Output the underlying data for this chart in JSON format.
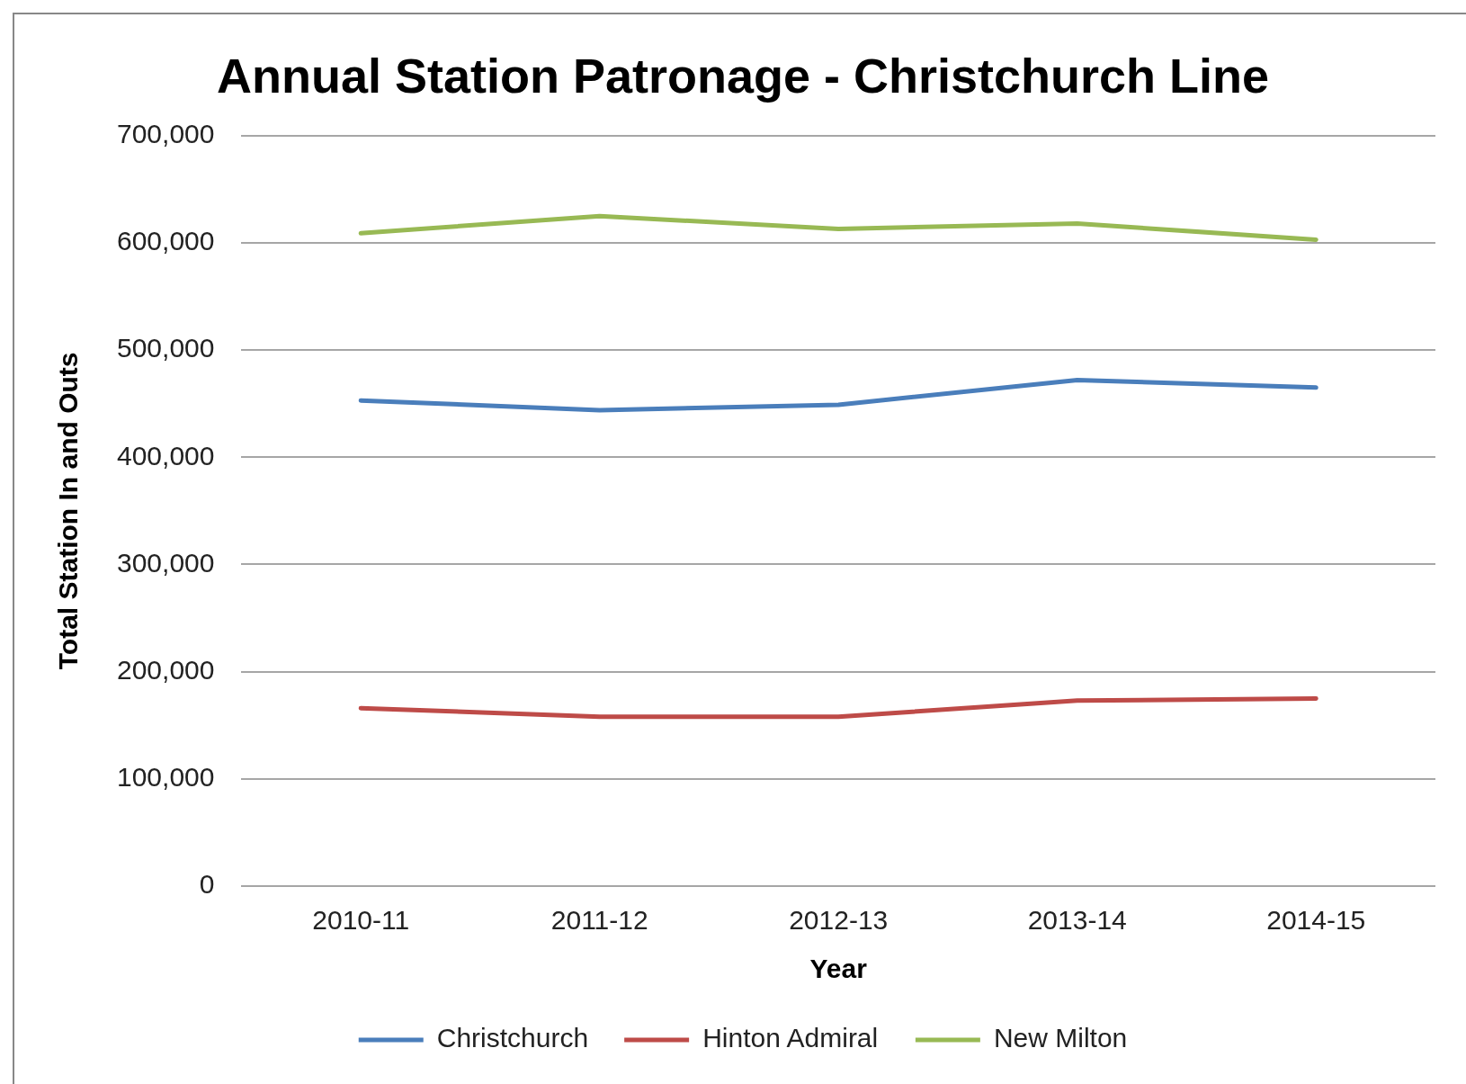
{
  "chart_data": {
    "type": "line",
    "title": "Annual Station Patronage - Christchurch Line",
    "xlabel": "Year",
    "ylabel": "Total Station In and Outs",
    "categories": [
      "2010-11",
      "2011-12",
      "2012-13",
      "2013-14",
      "2014-15"
    ],
    "series": [
      {
        "name": "Christchurch",
        "color": "#4a7ebb",
        "values": [
          453000,
          444000,
          449000,
          472000,
          465000
        ]
      },
      {
        "name": "Hinton Admiral",
        "color": "#be4b48",
        "values": [
          166000,
          158000,
          158000,
          173000,
          175000
        ]
      },
      {
        "name": "New Milton",
        "color": "#98b954",
        "values": [
          609000,
          625000,
          613000,
          618000,
          603000
        ]
      }
    ],
    "ylim": [
      0,
      700000
    ],
    "yticks": [
      0,
      {
        "value": 100000,
        "label": "100,000"
      },
      {
        "value": 200000,
        "label": "200,000"
      },
      {
        "value": 300000,
        "label": "300,000"
      },
      {
        "value": 400000,
        "label": "400,000"
      },
      {
        "value": 500000,
        "label": "500,000"
      },
      {
        "value": 600000,
        "label": "600,000"
      },
      {
        "value": 700000,
        "label": "700,000"
      }
    ],
    "grid": "y",
    "legend": "bottom",
    "marker": "none",
    "line_style": "solid"
  }
}
